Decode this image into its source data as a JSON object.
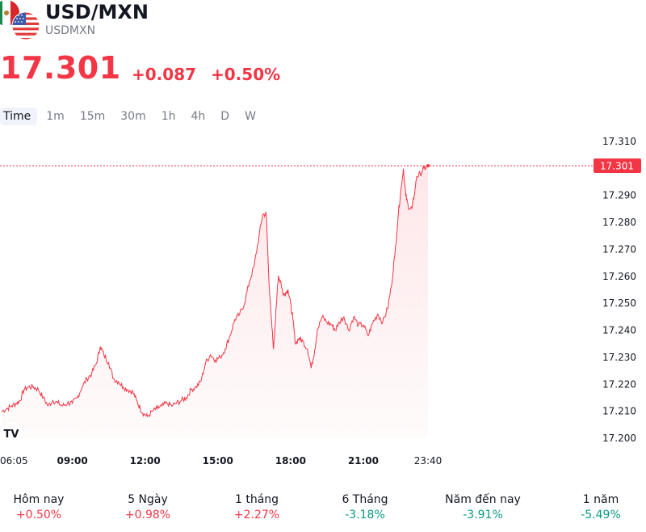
{
  "header": {
    "title": "USD/MXN",
    "symbol": "USDMXN",
    "flag_icons": [
      "mexico-flag-icon",
      "usa-flag-icon"
    ]
  },
  "quote": {
    "price": "17.301",
    "change": "+0.087",
    "change_pct": "+0.50%",
    "color": "#f23645"
  },
  "tabs": [
    {
      "label": "Time",
      "active": true
    },
    {
      "label": "1m",
      "active": false
    },
    {
      "label": "15m",
      "active": false
    },
    {
      "label": "30m",
      "active": false
    },
    {
      "label": "1h",
      "active": false
    },
    {
      "label": "4h",
      "active": false
    },
    {
      "label": "D",
      "active": false
    },
    {
      "label": "W",
      "active": false
    }
  ],
  "logo_text": "TV",
  "chart_data": {
    "type": "area",
    "x_ticks": [
      "06:05",
      "09:00",
      "12:00",
      "15:00",
      "18:00",
      "21:00",
      "23:40"
    ],
    "x_tick_times": [
      6.083,
      9,
      12,
      15,
      18,
      21,
      23.667
    ],
    "y_ticks": [
      "17.310",
      "17.290",
      "17.280",
      "17.270",
      "17.260",
      "17.250",
      "17.240",
      "17.230",
      "17.220",
      "17.210",
      "17.200"
    ],
    "ylim": [
      17.2,
      17.31
    ],
    "current_value": "17.301",
    "line_color": "#f23645",
    "grid": false,
    "series": [
      {
        "points": [
          [
            6.08,
            17.21
          ],
          [
            6.3,
            17.211
          ],
          [
            6.5,
            17.212
          ],
          [
            6.7,
            17.213
          ],
          [
            6.85,
            17.214
          ],
          [
            7.0,
            17.218
          ],
          [
            7.2,
            17.219
          ],
          [
            7.4,
            17.219
          ],
          [
            7.6,
            17.218
          ],
          [
            7.8,
            17.215
          ],
          [
            8.0,
            17.212
          ],
          [
            8.2,
            17.214
          ],
          [
            8.4,
            17.213
          ],
          [
            8.6,
            17.212
          ],
          [
            8.8,
            17.213
          ],
          [
            9.0,
            17.213
          ],
          [
            9.2,
            17.215
          ],
          [
            9.4,
            17.219
          ],
          [
            9.6,
            17.222
          ],
          [
            9.8,
            17.224
          ],
          [
            10.0,
            17.228
          ],
          [
            10.15,
            17.234
          ],
          [
            10.3,
            17.231
          ],
          [
            10.5,
            17.228
          ],
          [
            10.7,
            17.222
          ],
          [
            10.9,
            17.221
          ],
          [
            11.1,
            17.219
          ],
          [
            11.3,
            17.218
          ],
          [
            11.5,
            17.217
          ],
          [
            11.65,
            17.214
          ],
          [
            11.8,
            17.211
          ],
          [
            11.95,
            17.209
          ],
          [
            12.1,
            17.208
          ],
          [
            12.3,
            17.21
          ],
          [
            12.5,
            17.211
          ],
          [
            12.7,
            17.212
          ],
          [
            12.9,
            17.213
          ],
          [
            13.1,
            17.212
          ],
          [
            13.3,
            17.213
          ],
          [
            13.5,
            17.214
          ],
          [
            13.7,
            17.215
          ],
          [
            13.9,
            17.218
          ],
          [
            14.1,
            17.219
          ],
          [
            14.3,
            17.221
          ],
          [
            14.5,
            17.228
          ],
          [
            14.7,
            17.231
          ],
          [
            14.9,
            17.229
          ],
          [
            15.1,
            17.23
          ],
          [
            15.3,
            17.233
          ],
          [
            15.5,
            17.238
          ],
          [
            15.7,
            17.244
          ],
          [
            15.9,
            17.246
          ],
          [
            16.1,
            17.25
          ],
          [
            16.3,
            17.258
          ],
          [
            16.5,
            17.264
          ],
          [
            16.7,
            17.275
          ],
          [
            16.85,
            17.283
          ],
          [
            17.0,
            17.283
          ],
          [
            17.1,
            17.26
          ],
          [
            17.2,
            17.245
          ],
          [
            17.3,
            17.233
          ],
          [
            17.4,
            17.248
          ],
          [
            17.5,
            17.26
          ],
          [
            17.6,
            17.258
          ],
          [
            17.7,
            17.253
          ],
          [
            17.8,
            17.254
          ],
          [
            17.9,
            17.255
          ],
          [
            18.0,
            17.25
          ],
          [
            18.1,
            17.244
          ],
          [
            18.2,
            17.235
          ],
          [
            18.35,
            17.237
          ],
          [
            18.5,
            17.236
          ],
          [
            18.7,
            17.233
          ],
          [
            18.85,
            17.226
          ],
          [
            19.0,
            17.233
          ],
          [
            19.1,
            17.24
          ],
          [
            19.3,
            17.245
          ],
          [
            19.5,
            17.243
          ],
          [
            19.7,
            17.242
          ],
          [
            19.85,
            17.24
          ],
          [
            20.0,
            17.243
          ],
          [
            20.2,
            17.245
          ],
          [
            20.4,
            17.24
          ],
          [
            20.6,
            17.245
          ],
          [
            20.8,
            17.242
          ],
          [
            21.0,
            17.242
          ],
          [
            21.2,
            17.238
          ],
          [
            21.4,
            17.243
          ],
          [
            21.6,
            17.246
          ],
          [
            21.8,
            17.243
          ],
          [
            22.0,
            17.248
          ],
          [
            22.15,
            17.256
          ],
          [
            22.3,
            17.268
          ],
          [
            22.45,
            17.284
          ],
          [
            22.55,
            17.292
          ],
          [
            22.65,
            17.3
          ],
          [
            22.75,
            17.29
          ],
          [
            22.85,
            17.286
          ],
          [
            23.0,
            17.285
          ],
          [
            23.1,
            17.29
          ],
          [
            23.2,
            17.297
          ],
          [
            23.35,
            17.298
          ],
          [
            23.5,
            17.3
          ],
          [
            23.67,
            17.301
          ]
        ]
      }
    ]
  },
  "performance": [
    {
      "label": "Hôm nay",
      "value": "+0.50%",
      "sign": "neg"
    },
    {
      "label": "5 Ngày",
      "value": "+0.98%",
      "sign": "neg"
    },
    {
      "label": "1 tháng",
      "value": "+2.27%",
      "sign": "neg"
    },
    {
      "label": "6 Tháng",
      "value": "-3.18%",
      "sign": "pos"
    },
    {
      "label": "Năm đến nay",
      "value": "-3.91%",
      "sign": "pos"
    },
    {
      "label": "1 năm",
      "value": "-5.49%",
      "sign": "pos"
    }
  ]
}
